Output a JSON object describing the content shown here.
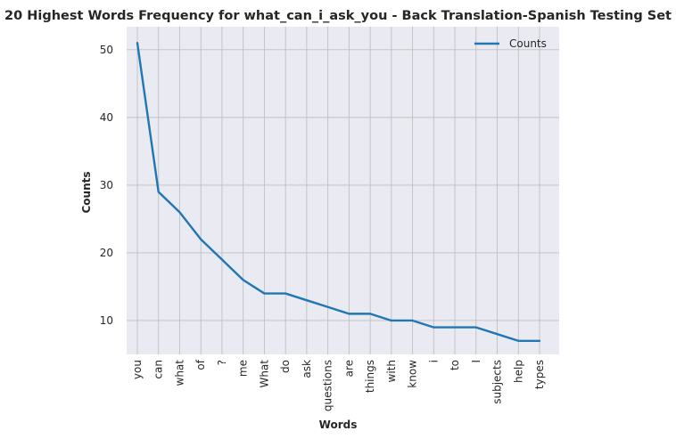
{
  "chart_data": {
    "type": "line",
    "title": "20 Highest Words Frequency for what_can_i_ask_you - Back Translation-Spanish Testing Set",
    "xlabel": "Words",
    "ylabel": "Counts",
    "categories": [
      "you",
      "can",
      "what",
      "of",
      "?",
      "me",
      "What",
      "do",
      "ask",
      "questions",
      "are",
      "things",
      "with",
      "know",
      "i",
      "to",
      "I",
      "subjects",
      "help",
      "types"
    ],
    "series": [
      {
        "name": "Counts",
        "values": [
          51,
          29,
          26,
          22,
          19,
          16,
          14,
          14,
          13,
          12,
          11,
          11,
          10,
          10,
          9,
          9,
          9,
          8,
          7,
          7
        ],
        "color": "#1f77b4"
      }
    ],
    "ylim": [
      5,
      53.4
    ],
    "yticks": [
      10,
      20,
      30,
      40,
      50
    ],
    "grid": true,
    "legend_position": "top-right",
    "background_color": "#eaeaf2",
    "grid_color": "#c0c0c0"
  }
}
